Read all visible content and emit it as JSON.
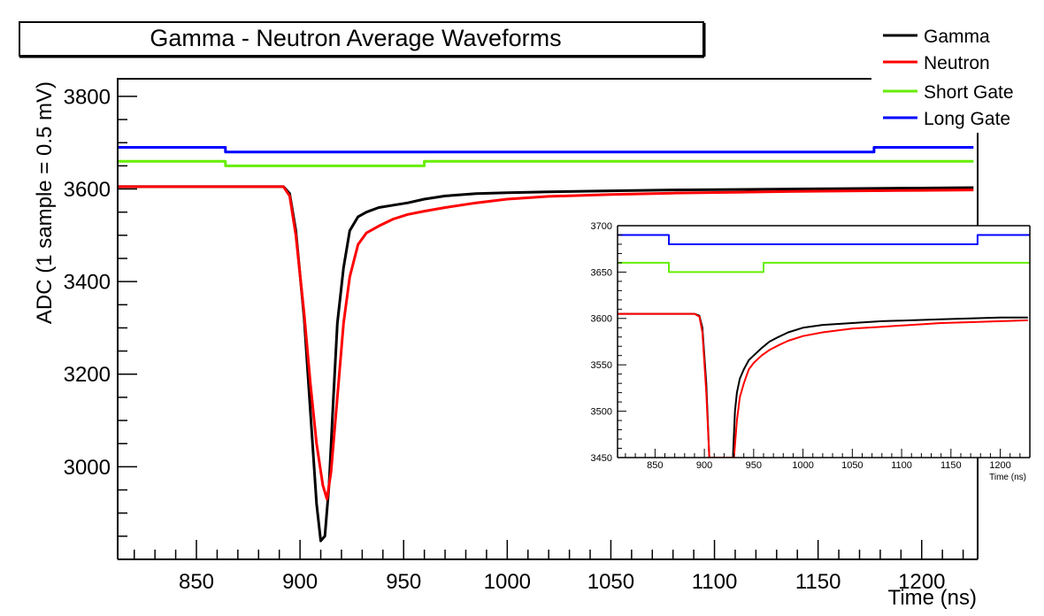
{
  "chart_data": [
    {
      "type": "line",
      "title": "Gamma - Neutron Average Waveforms",
      "xlabel": "Time (ns)",
      "ylabel": "ADC (1 sample = 0.5 mV)",
      "xlim": [
        812,
        1227
      ],
      "ylim": [
        2800,
        3840
      ],
      "x_ticks": [
        850,
        900,
        950,
        1000,
        1050,
        1100,
        1150,
        1200
      ],
      "y_ticks": [
        3000,
        3200,
        3400,
        3600,
        3800
      ],
      "legend_position": "top-right",
      "grid": false,
      "series": [
        {
          "name": "Gamma",
          "color": "#000000",
          "x": [
            812,
            880,
            892,
            895,
            898,
            902,
            905,
            908,
            910,
            912,
            914,
            916,
            918,
            921,
            924,
            928,
            932,
            938,
            945,
            952,
            960,
            970,
            985,
            1000,
            1020,
            1050,
            1080,
            1110,
            1140,
            1170,
            1200,
            1225
          ],
          "y": [
            3605,
            3605,
            3605,
            3590,
            3510,
            3320,
            3120,
            2920,
            2840,
            2850,
            2960,
            3140,
            3310,
            3430,
            3510,
            3540,
            3550,
            3560,
            3565,
            3570,
            3578,
            3585,
            3590,
            3592,
            3594,
            3596,
            3598,
            3599,
            3600,
            3601,
            3602,
            3603
          ]
        },
        {
          "name": "Neutron",
          "color": "#ff0000",
          "x": [
            812,
            880,
            892,
            895,
            898,
            902,
            905,
            908,
            911,
            913,
            915,
            918,
            921,
            924,
            928,
            932,
            938,
            945,
            952,
            960,
            970,
            985,
            1000,
            1020,
            1050,
            1080,
            1110,
            1140,
            1170,
            1200,
            1225
          ],
          "y": [
            3605,
            3605,
            3605,
            3585,
            3500,
            3330,
            3180,
            3050,
            2960,
            2930,
            2990,
            3150,
            3310,
            3410,
            3480,
            3505,
            3520,
            3535,
            3545,
            3552,
            3560,
            3570,
            3578,
            3584,
            3588,
            3591,
            3593,
            3595,
            3596,
            3597,
            3598
          ]
        },
        {
          "name": "Short Gate",
          "color": "#66ee00",
          "x": [
            812,
            864,
            864,
            960,
            960,
            1225
          ],
          "y": [
            3660,
            3660,
            3650,
            3650,
            3660,
            3660
          ]
        },
        {
          "name": "Long Gate",
          "color": "#0000ff",
          "x": [
            812,
            864,
            864,
            1177,
            1177,
            1225
          ],
          "y": [
            3690,
            3690,
            3680,
            3680,
            3690,
            3690
          ]
        }
      ]
    },
    {
      "type": "line",
      "title": "",
      "xlabel": "Time (ns)",
      "ylabel": "",
      "xlim": [
        812,
        1230
      ],
      "ylim": [
        3450,
        3700
      ],
      "x_ticks": [
        850,
        900,
        950,
        1000,
        1050,
        1100,
        1150,
        1200
      ],
      "y_ticks": [
        3450,
        3500,
        3550,
        3600,
        3650,
        3700
      ],
      "grid": false,
      "series": [
        {
          "name": "Gamma",
          "color": "#000000",
          "x": [
            812,
            890,
            895,
            898,
            902,
            905,
            929,
            931,
            933,
            936,
            940,
            945,
            950,
            958,
            966,
            975,
            985,
            1000,
            1020,
            1050,
            1080,
            1110,
            1140,
            1170,
            1200,
            1228
          ],
          "y": [
            3605,
            3605,
            3603,
            3590,
            3530,
            3450,
            3450,
            3500,
            3520,
            3535,
            3545,
            3555,
            3560,
            3568,
            3575,
            3580,
            3585,
            3590,
            3593,
            3595,
            3597,
            3598,
            3599,
            3600,
            3601,
            3601
          ]
        },
        {
          "name": "Neutron",
          "color": "#ff0000",
          "x": [
            812,
            890,
            895,
            898,
            902,
            905,
            930,
            933,
            936,
            940,
            945,
            950,
            958,
            966,
            975,
            985,
            1000,
            1020,
            1050,
            1080,
            1110,
            1140,
            1170,
            1200,
            1228
          ],
          "y": [
            3605,
            3605,
            3602,
            3585,
            3520,
            3450,
            3450,
            3490,
            3515,
            3530,
            3545,
            3552,
            3560,
            3566,
            3571,
            3576,
            3581,
            3585,
            3589,
            3591,
            3593,
            3595,
            3596,
            3597,
            3598
          ]
        },
        {
          "name": "Short Gate",
          "color": "#66ee00",
          "x": [
            812,
            864,
            864,
            960,
            960,
            1230
          ],
          "y": [
            3660,
            3660,
            3650,
            3650,
            3660,
            3660
          ]
        },
        {
          "name": "Long Gate",
          "color": "#0000ff",
          "x": [
            812,
            864,
            864,
            1177,
            1177,
            1230
          ],
          "y": [
            3690,
            3690,
            3680,
            3680,
            3690,
            3690
          ]
        }
      ]
    }
  ]
}
